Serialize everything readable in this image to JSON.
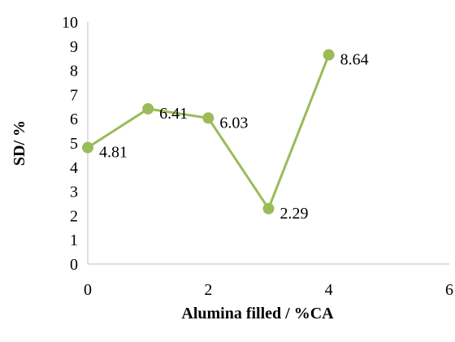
{
  "chart_data": {
    "type": "scatter",
    "x": [
      0,
      1,
      2,
      3,
      4
    ],
    "y": [
      4.81,
      6.41,
      6.03,
      2.29,
      8.64
    ],
    "data_labels": [
      "4.81",
      "6.41",
      "6.03",
      "2.29",
      "8.64"
    ],
    "xlabel": "Alumina filled / %CA",
    "ylabel": "SD/ %",
    "xlim": [
      0,
      6
    ],
    "ylim": [
      0,
      10
    ],
    "x_ticks": [
      "0",
      "2",
      "4",
      "6"
    ],
    "y_ticks": [
      "0",
      "1",
      "2",
      "3",
      "4",
      "5",
      "6",
      "7",
      "8",
      "9",
      "10"
    ],
    "grid": false,
    "legend": "none",
    "line_style": "straight lines with markers",
    "series_color": "#9bbb59"
  }
}
